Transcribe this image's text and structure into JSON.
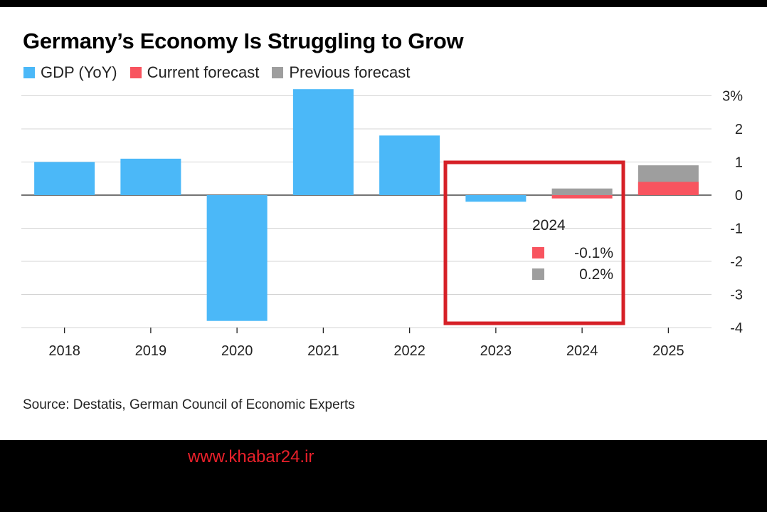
{
  "chart_data": {
    "type": "bar",
    "title": "Germany’s Economy Is Struggling to Grow",
    "categories": [
      "2018",
      "2019",
      "2020",
      "2021",
      "2022",
      "2023",
      "2024",
      "2025"
    ],
    "series": [
      {
        "name": "GDP (YoY)",
        "color": "#4bb8f8",
        "values": [
          1.0,
          1.1,
          -3.8,
          3.2,
          1.8,
          -0.2,
          null,
          null
        ]
      },
      {
        "name": "Current forecast",
        "color": "#f8545f",
        "values": [
          null,
          null,
          null,
          null,
          null,
          null,
          -0.1,
          0.4
        ]
      },
      {
        "name": "Previous forecast",
        "color": "#9e9e9e",
        "values": [
          null,
          null,
          null,
          null,
          null,
          null,
          0.2,
          0.9
        ]
      }
    ],
    "y_ticks": [
      {
        "value": 3,
        "label": "3%"
      },
      {
        "value": 2,
        "label": "2"
      },
      {
        "value": 1,
        "label": "1"
      },
      {
        "value": 0,
        "label": "0"
      },
      {
        "value": -1,
        "label": "-1"
      },
      {
        "value": -2,
        "label": "-2"
      },
      {
        "value": -3,
        "label": "-3"
      },
      {
        "value": -4,
        "label": "-4"
      }
    ],
    "ylim": [
      -4,
      3.2
    ],
    "grid": true,
    "legend_position": "top-left",
    "annotation": {
      "year": "2024",
      "items": [
        {
          "label": "-0.1%",
          "color": "#f8545f"
        },
        {
          "label": "0.2%",
          "color": "#9e9e9e"
        }
      ],
      "highlight_color": "#d62027"
    }
  },
  "source": "Source: Destatis, German Council of Economic Experts",
  "watermark": "www.khabar24.ir"
}
